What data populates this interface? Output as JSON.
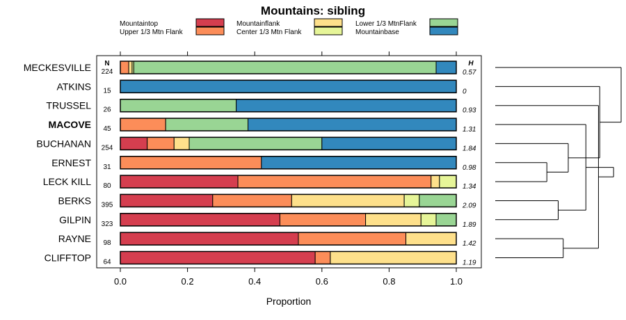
{
  "chart_data": {
    "type": "bar",
    "orientation": "horizontal",
    "stacked": true,
    "title": "Mountains: sibling",
    "xlabel": "Proportion",
    "xlim": [
      0,
      1
    ],
    "xticks": [
      "0.0",
      "0.2",
      "0.4",
      "0.6",
      "0.8",
      "1.0"
    ],
    "n_header": "N",
    "h_header": "H",
    "legend": [
      {
        "name": "Mountaintop",
        "color": "#d53e4f"
      },
      {
        "name": "Upper 1/3 Mtn Flank",
        "color": "#fc8d59"
      },
      {
        "name": "Mountainflank",
        "color": "#fee08b"
      },
      {
        "name": "Center 1/3 Mtn Flank",
        "color": "#e6f598"
      },
      {
        "name": "Lower 1/3 MtnFlank",
        "color": "#99d594"
      },
      {
        "name": "Mountainbase",
        "color": "#3288bd"
      }
    ],
    "categories": [
      "MECKESVILLE",
      "ATKINS",
      "TRUSSEL",
      "MACOVE",
      "BUCHANAN",
      "ERNEST",
      "LECK KILL",
      "BERKS",
      "GILPIN",
      "RAYNE",
      "CLIFFTOP"
    ],
    "highlight": "MACOVE",
    "n": [
      "224",
      "15",
      "26",
      "45",
      "254",
      "31",
      "80",
      "395",
      "323",
      "98",
      "64"
    ],
    "h": [
      "0.57",
      "0",
      "0.93",
      "1.31",
      "1.84",
      "0.98",
      "1.34",
      "2.09",
      "1.89",
      "1.42",
      "1.19"
    ],
    "series": [
      {
        "name": "Mountaintop",
        "values": [
          0,
          0,
          0,
          0,
          0.08,
          0,
          0.35,
          0.275,
          0.475,
          0.53,
          0.58
        ]
      },
      {
        "name": "Upper 1/3 Mtn Flank",
        "values": [
          0.025,
          0,
          0,
          0.135,
          0.08,
          0.42,
          0.575,
          0.235,
          0.255,
          0.32,
          0.045
        ]
      },
      {
        "name": "Mountainflank",
        "values": [
          0.01,
          0,
          0,
          0,
          0.045,
          0,
          0.025,
          0.335,
          0.165,
          0.15,
          0.375
        ]
      },
      {
        "name": "Center 1/3 Mtn Flank",
        "values": [
          0.005,
          0,
          0,
          0,
          0,
          0,
          0.05,
          0.045,
          0.045,
          0,
          0
        ]
      },
      {
        "name": "Lower 1/3 MtnFlank",
        "values": [
          0.9,
          0,
          0.345,
          0.245,
          0.395,
          0,
          0,
          0.11,
          0.06,
          0,
          0
        ]
      },
      {
        "name": "Mountainbase",
        "values": [
          0.06,
          1.0,
          0.655,
          0.62,
          0.4,
          0.58,
          0,
          0,
          0,
          0,
          0
        ]
      }
    ],
    "dendrogram_merges": [
      [
        5,
        6,
        0.41
      ],
      [
        7,
        8,
        0.5
      ],
      [
        9,
        10,
        0.54
      ],
      [
        11,
        4,
        0.58
      ],
      [
        12,
        3,
        0.72
      ],
      [
        13,
        2,
        0.82
      ],
      [
        1,
        14,
        0.83
      ],
      [
        16,
        15,
        0.94
      ],
      [
        17,
        0,
        1.0
      ]
    ]
  }
}
